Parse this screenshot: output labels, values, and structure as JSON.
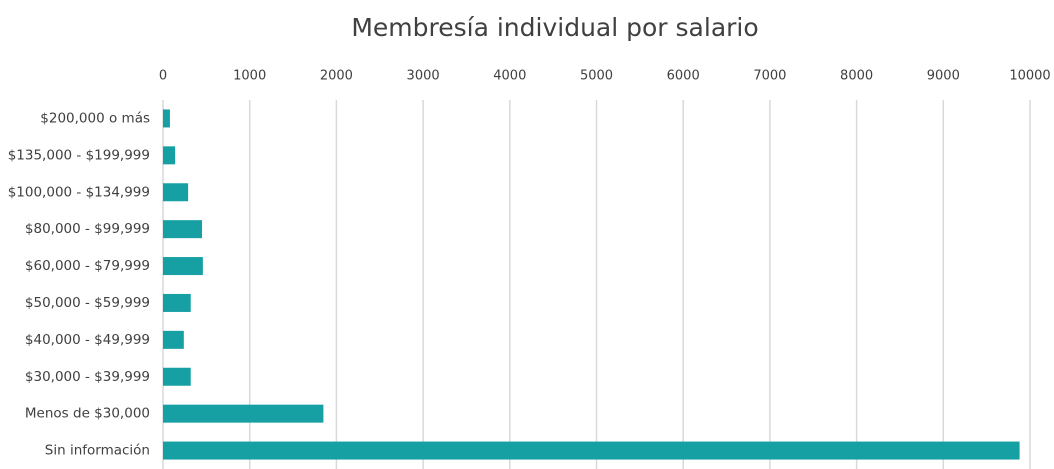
{
  "chart_data": {
    "type": "barh",
    "title": "Membresía individual por salario",
    "categories": [
      "$200,000  o más",
      "$135,000 - $199,999",
      "$100,000 - $134,999",
      "$80,000 - $99,999",
      "$60,000 - $79,999",
      "$50,000 - $59,999",
      "$40,000 - $49,999",
      "$30,000 - $39,999",
      "Menos de $30,000",
      "Sin información"
    ],
    "values": [
      80,
      140,
      290,
      450,
      460,
      320,
      240,
      320,
      1850,
      9880
    ],
    "color": "#17a0a4",
    "xlim": [
      0,
      10000
    ],
    "xticks": [
      0,
      1000,
      2000,
      3000,
      4000,
      5000,
      6000,
      7000,
      8000,
      9000,
      10000
    ],
    "grid": true
  }
}
